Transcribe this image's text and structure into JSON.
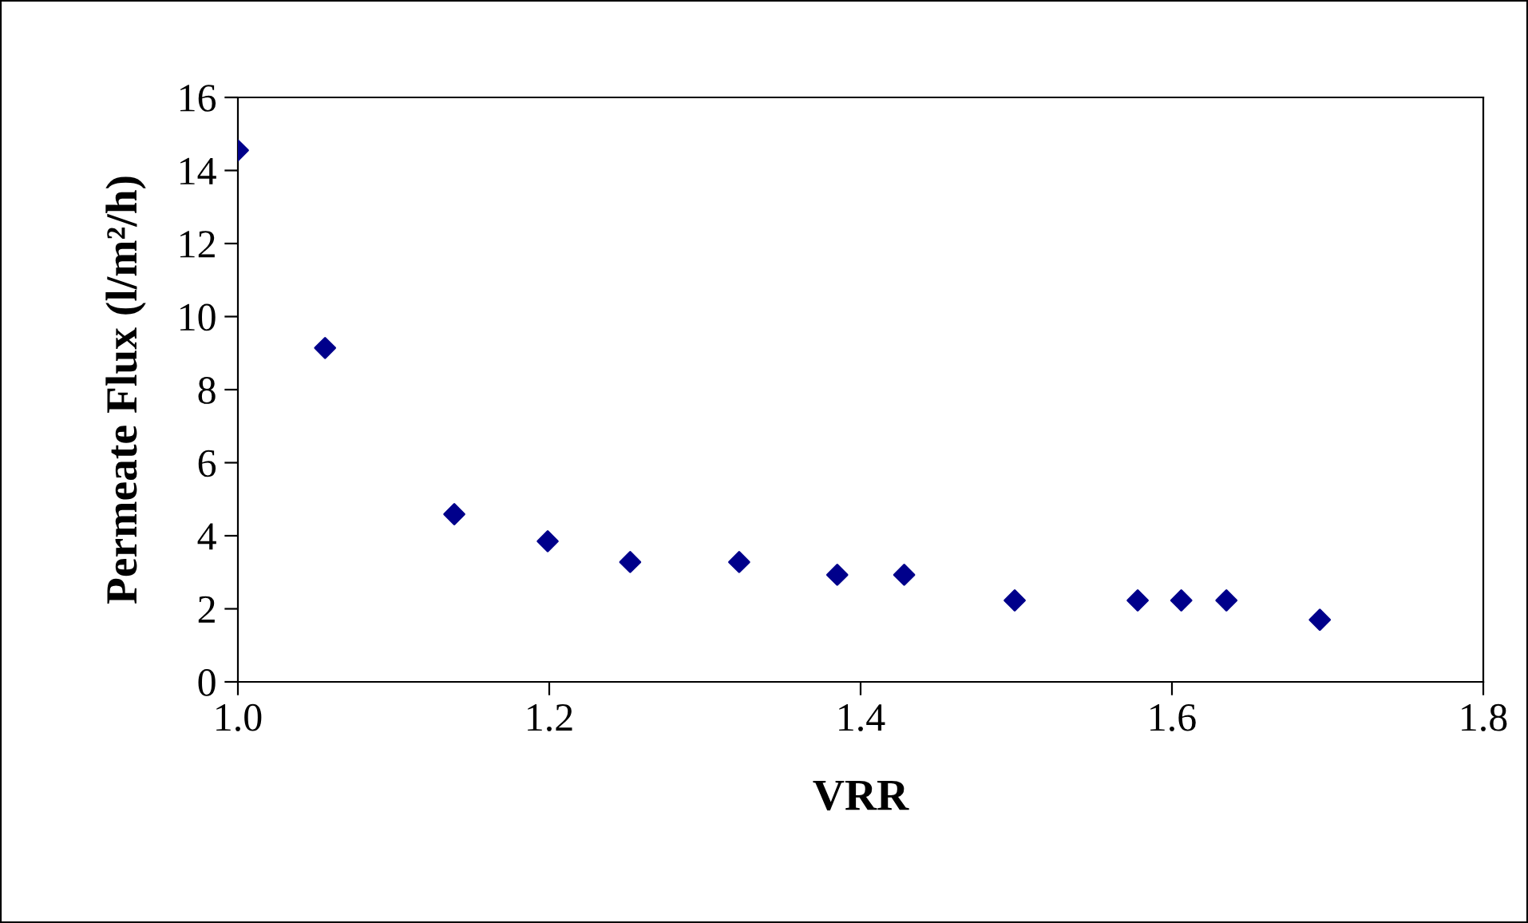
{
  "chart_data": {
    "type": "scatter",
    "xlabel": "VRR",
    "ylabel": "Permeate Flux (l/m²/h)",
    "x": [
      1.0,
      1.056,
      1.139,
      1.199,
      1.252,
      1.322,
      1.385,
      1.428,
      1.499,
      1.578,
      1.606,
      1.635,
      1.695
    ],
    "series": [
      {
        "color": "#00008b",
        "values": [
          14.55,
          9.14,
          4.59,
          3.85,
          3.28,
          3.28,
          2.93,
          2.93,
          2.23,
          2.23,
          2.23,
          2.23,
          1.7
        ]
      }
    ],
    "marker": "diamond",
    "xlim": [
      1.0,
      1.8
    ],
    "xticks": [
      {
        "value": 1.0,
        "label": "1.0"
      },
      {
        "value": 1.2,
        "label": "1.2"
      },
      {
        "value": 1.4,
        "label": "1.4"
      },
      {
        "value": 1.6,
        "label": "1.6"
      },
      {
        "value": 1.8,
        "label": "1.8"
      }
    ],
    "ylim": [
      0,
      16
    ],
    "yticks": [
      0,
      2,
      4,
      6,
      8,
      10,
      12,
      14,
      16
    ],
    "grid": false,
    "legend": false
  }
}
